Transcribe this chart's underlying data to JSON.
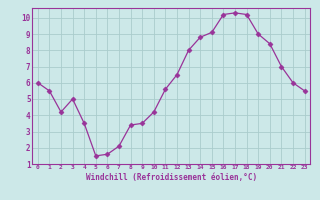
{
  "x": [
    0,
    1,
    2,
    3,
    4,
    5,
    6,
    7,
    8,
    9,
    10,
    11,
    12,
    13,
    14,
    15,
    16,
    17,
    18,
    19,
    20,
    21,
    22,
    23
  ],
  "y": [
    6.0,
    5.5,
    4.2,
    5.0,
    3.5,
    1.5,
    1.6,
    2.1,
    3.4,
    3.5,
    4.2,
    5.6,
    6.5,
    8.0,
    8.8,
    9.1,
    10.2,
    10.3,
    10.2,
    9.0,
    8.4,
    7.0,
    6.0,
    5.5
  ],
  "line_color": "#993399",
  "marker": "D",
  "marker_size": 2.5,
  "bg_color": "#cce8e8",
  "grid_color": "#aacccc",
  "xlabel": "Windchill (Refroidissement éolien,°C)",
  "xlim": [
    -0.5,
    23.5
  ],
  "ylim": [
    1,
    10.6
  ],
  "yticks": [
    1,
    2,
    3,
    4,
    5,
    6,
    7,
    8,
    9,
    10
  ],
  "xticks": [
    0,
    1,
    2,
    3,
    4,
    5,
    6,
    7,
    8,
    9,
    10,
    11,
    12,
    13,
    14,
    15,
    16,
    17,
    18,
    19,
    20,
    21,
    22,
    23
  ],
  "tick_color": "#993399",
  "label_color": "#993399",
  "spine_color": "#993399"
}
